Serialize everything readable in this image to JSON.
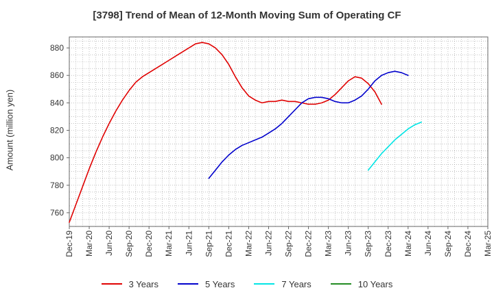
{
  "chart_data": {
    "type": "line",
    "title": "[3798]  Trend of Mean of 12-Month Moving Sum of Operating CF",
    "xlabel": "",
    "ylabel": "Amount (million yen)",
    "ylim": [
      750,
      888
    ],
    "yticks": [
      760,
      780,
      800,
      820,
      840,
      860,
      880
    ],
    "grid": true,
    "legend_position": "bottom-center",
    "x_categories": [
      "Dec-19",
      "Mar-20",
      "Jun-20",
      "Sep-20",
      "Dec-20",
      "Mar-21",
      "Jun-21",
      "Sep-21",
      "Dec-21",
      "Mar-22",
      "Jun-22",
      "Sep-22",
      "Dec-22",
      "Mar-23",
      "Jun-23",
      "Sep-23",
      "Dec-23",
      "Mar-24",
      "Jun-24",
      "Sep-24",
      "Dec-24",
      "Mar-25"
    ],
    "series": [
      {
        "name": "3 Years",
        "color": "#e00000",
        "start_index": 0,
        "values": [
          753,
          766,
          779,
          792,
          804,
          815,
          825,
          834,
          842,
          849,
          855,
          859,
          862,
          865,
          868,
          871,
          874,
          877,
          880,
          883,
          884,
          883,
          880,
          875,
          868,
          859,
          851,
          845,
          842,
          840,
          841,
          841,
          842,
          841,
          841,
          840,
          839,
          839,
          840,
          842,
          846,
          851,
          856,
          859,
          858,
          854,
          848,
          839
        ]
      },
      {
        "name": "5 Years",
        "color": "#0000cc",
        "start_index": 21,
        "values": [
          785,
          791,
          797,
          802,
          806,
          809,
          811,
          813,
          815,
          818,
          821,
          825,
          830,
          835,
          840,
          843,
          844,
          844,
          843,
          841,
          840,
          840,
          842,
          845,
          850,
          856,
          860,
          862,
          863,
          862,
          860
        ]
      },
      {
        "name": "7 Years",
        "color": "#00e5e5",
        "start_index": 45,
        "values": [
          791,
          797,
          803,
          808,
          813,
          817,
          821,
          824,
          826
        ]
      },
      {
        "name": "10 Years",
        "color": "#228b22",
        "start_index": 0,
        "values": []
      }
    ]
  }
}
